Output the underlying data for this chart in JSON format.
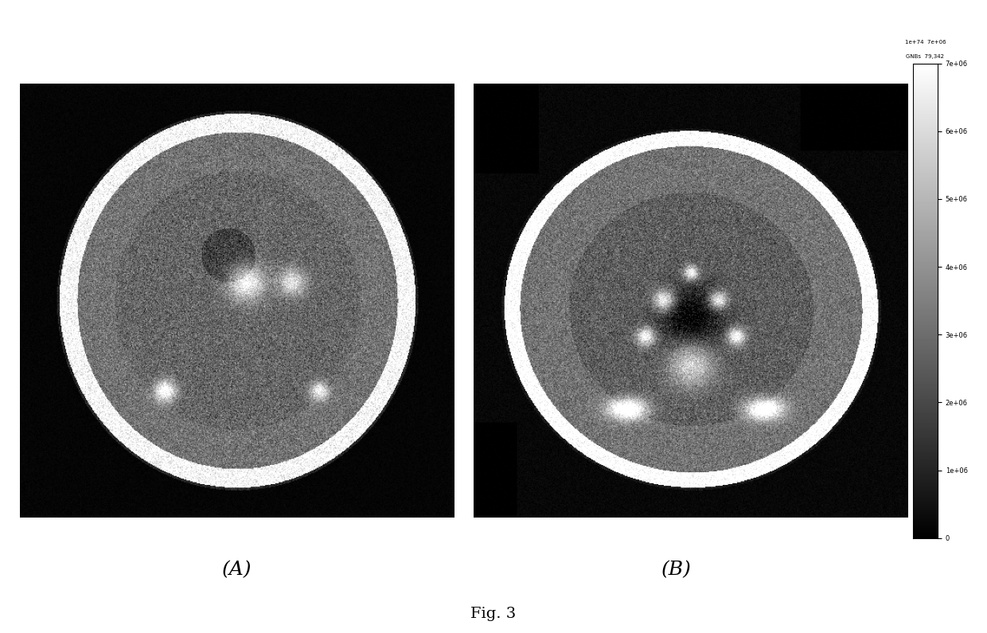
{
  "title": "Fig. 3",
  "label_A": "(A)",
  "label_B": "(B)",
  "background_color": "#ffffff",
  "fig_width": 12.4,
  "fig_height": 7.95,
  "colorbar_ticks": [
    "0",
    "1e+06",
    "2e+06",
    "3e+06",
    "4e+06",
    "5e+06",
    "6e+06",
    "7e+06"
  ],
  "colorbar_top_labels": [
    "1e+74",
    "7e+06",
    "GNBs",
    "79,342"
  ],
  "label_fontsize": 18,
  "title_fontsize": 14
}
